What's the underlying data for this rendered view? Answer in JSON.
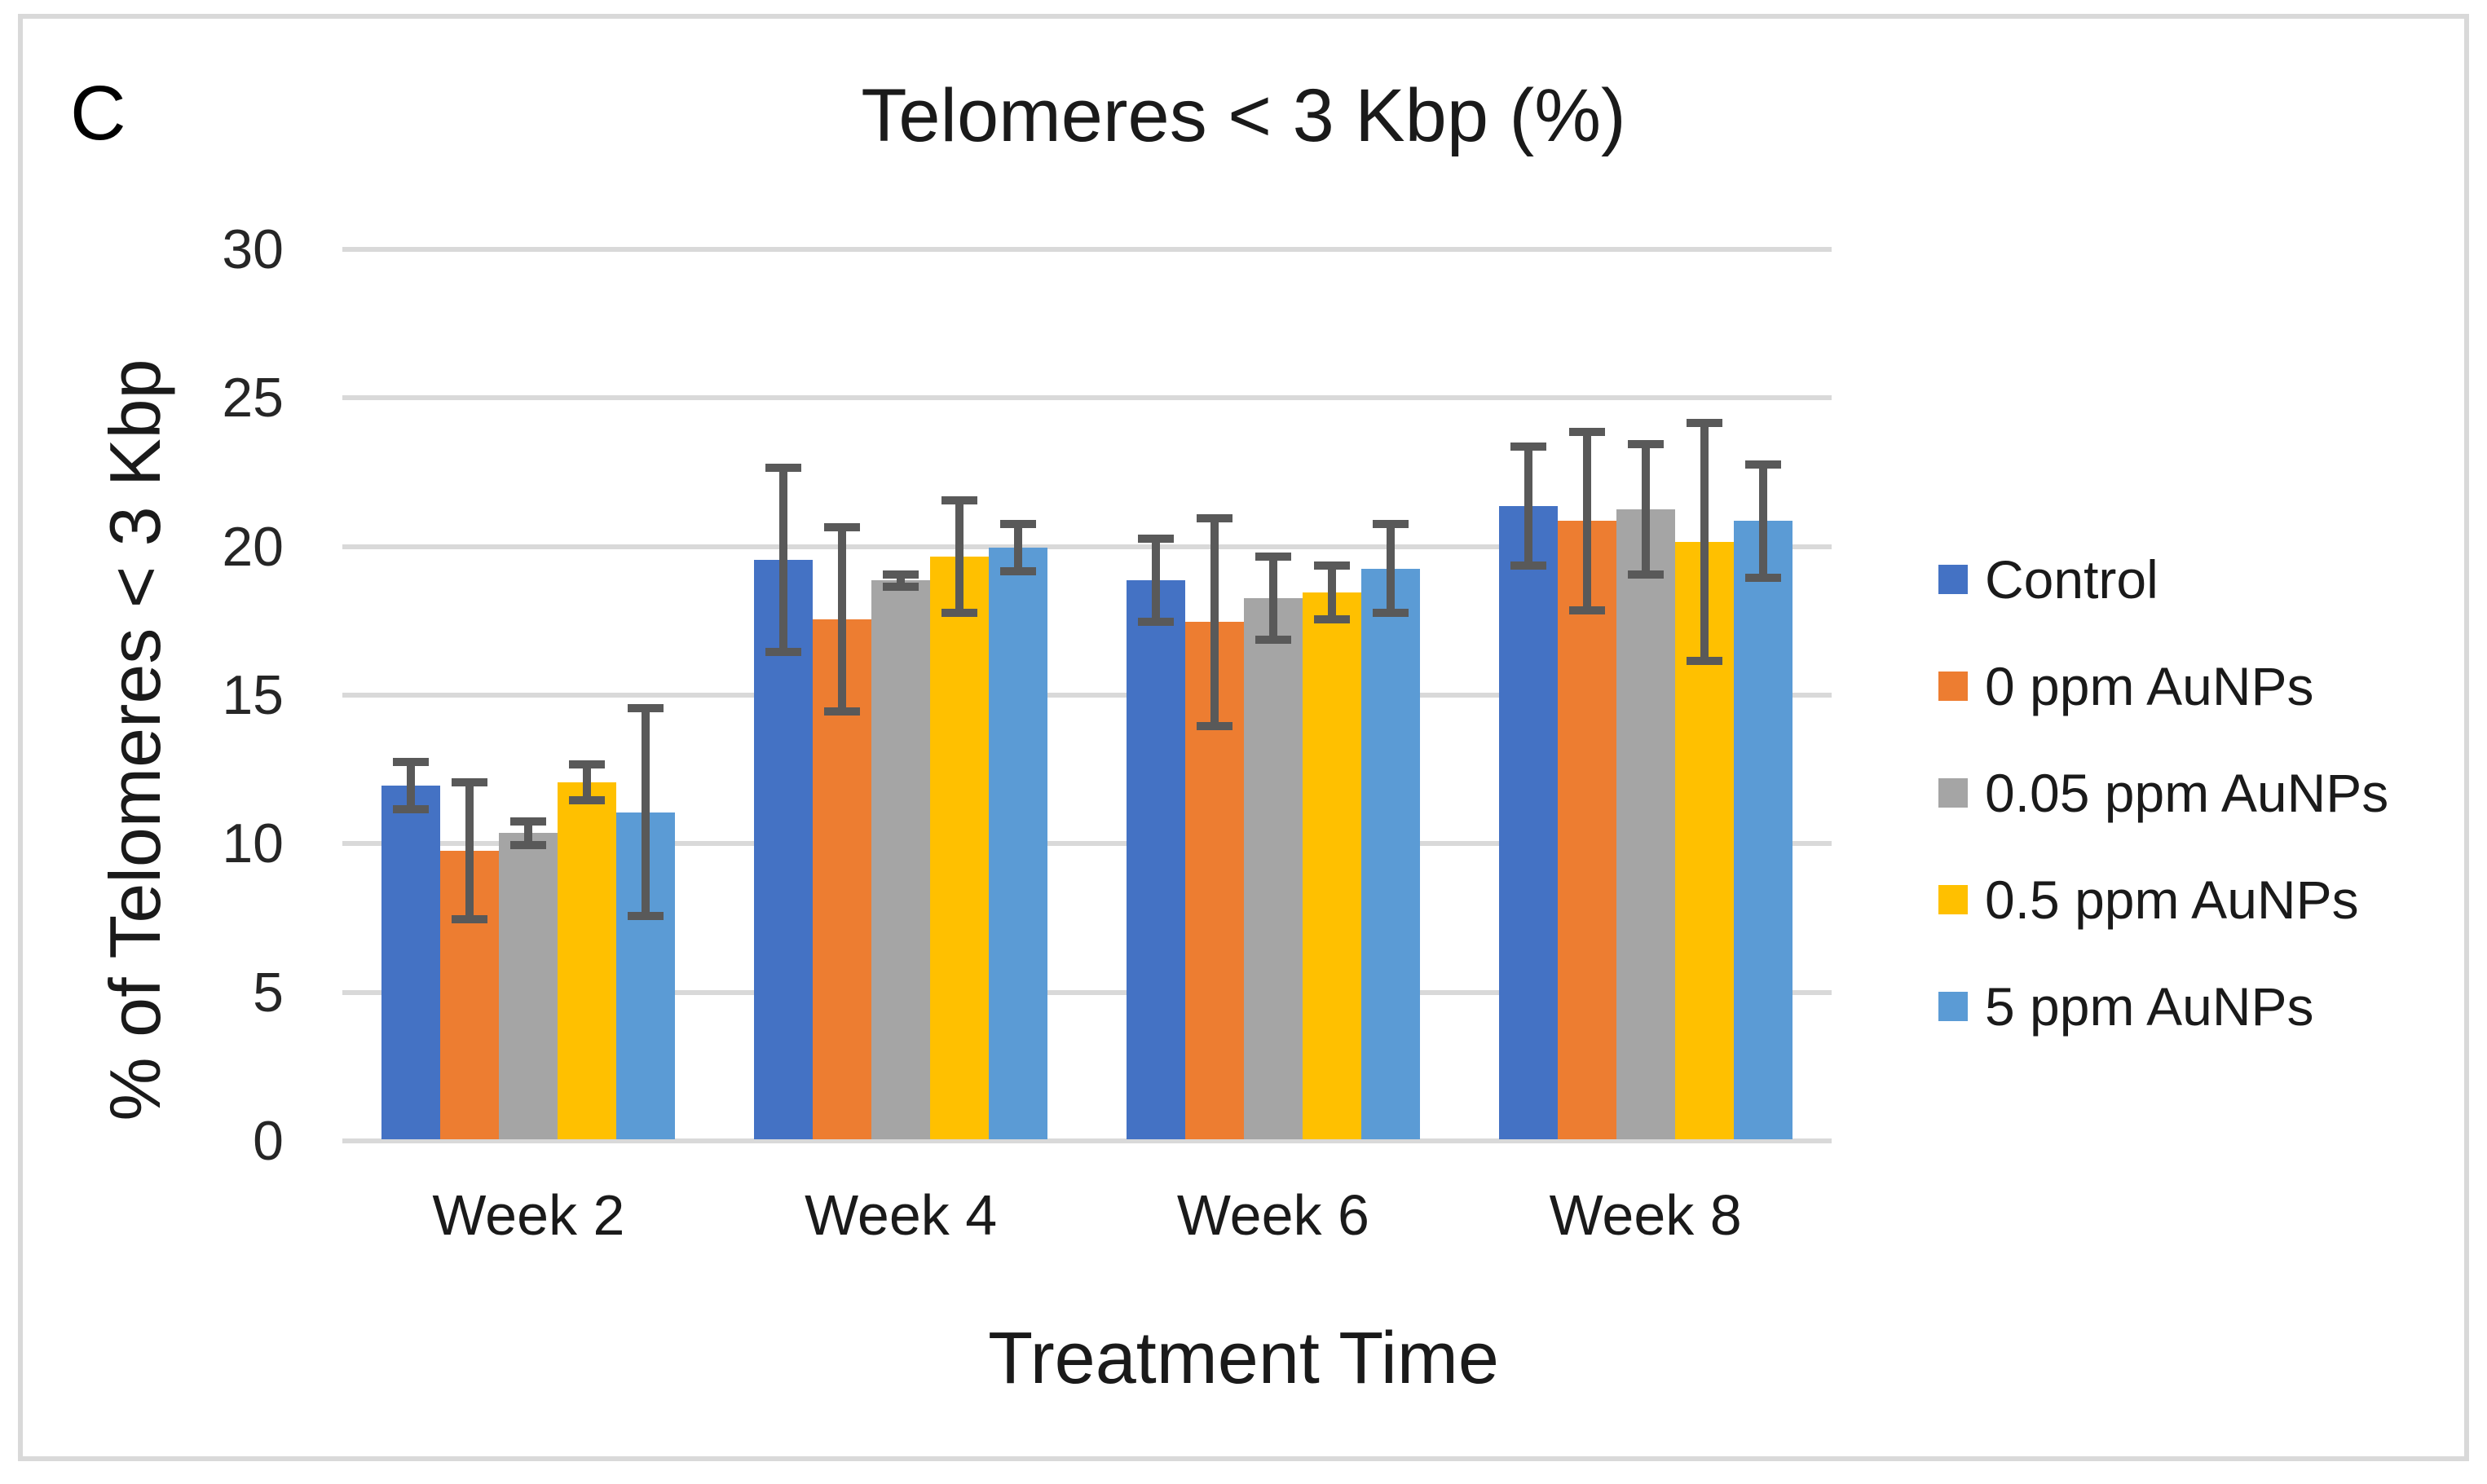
{
  "panel_label": "C",
  "title": "Telomeres < 3 Kbp (%)",
  "axes": {
    "y_title": "% of Telomeres < 3 Kbp",
    "x_title": "Treatment Time",
    "y_ticks": [
      0,
      5,
      10,
      15,
      20,
      25,
      30
    ],
    "y_max": 30
  },
  "style": {
    "grid_color": "#d9d9d9",
    "error_bar_color": "#595959",
    "border_color": "#d9d9d9",
    "background": "#ffffff"
  },
  "chart_data": {
    "type": "bar",
    "title": "Telomeres < 3 Kbp (%)",
    "xlabel": "Treatment Time",
    "ylabel": "% of Telomeres < 3 Kbp",
    "ylim": [
      0,
      30
    ],
    "y_tick_step": 5,
    "grid": true,
    "legend_position": "right",
    "error_bars": true,
    "categories": [
      "Week 2",
      "Week 4",
      "Week 6",
      "Week 8"
    ],
    "series": [
      {
        "name": "Control",
        "color": "#4472C4",
        "values": [
          11.9,
          19.5,
          18.8,
          21.3
        ],
        "errors": [
          0.8,
          3.1,
          1.4,
          2.0
        ]
      },
      {
        "name": "0 ppm AuNPs",
        "color": "#ED7D31",
        "values": [
          9.7,
          17.5,
          17.4,
          20.8
        ],
        "errors": [
          2.3,
          3.1,
          3.5,
          3.0
        ]
      },
      {
        "name": "0.05 ppm AuNPs",
        "color": "#A5A5A5",
        "values": [
          10.3,
          18.8,
          18.2,
          21.2
        ],
        "errors": [
          0.4,
          0.2,
          1.4,
          2.2
        ]
      },
      {
        "name": "0.5 ppm AuNPs",
        "color": "#FFC000",
        "values": [
          12.0,
          19.6,
          18.4,
          20.1
        ],
        "errors": [
          0.6,
          1.9,
          0.9,
          4.0
        ]
      },
      {
        "name": "5 ppm AuNPs",
        "color": "#5B9BD5",
        "values": [
          11.0,
          19.9,
          19.2,
          20.8
        ],
        "errors": [
          3.5,
          0.8,
          1.5,
          1.9
        ]
      }
    ]
  }
}
